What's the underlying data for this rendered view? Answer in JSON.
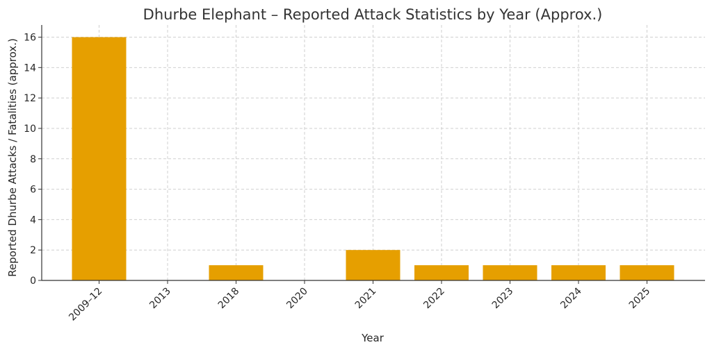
{
  "chart_data": {
    "type": "bar",
    "title": "Dhurbe Elephant – Reported Attack Statistics by Year (Approx.)",
    "xlabel": "Year",
    "ylabel": "Reported Dhurbe Attacks / Fatalities (approx.)",
    "categories": [
      "2009–12",
      "2013",
      "2018",
      "2020",
      "2021",
      "2022",
      "2023",
      "2024",
      "2025"
    ],
    "values": [
      16,
      0,
      1,
      0,
      2,
      1,
      1,
      1,
      1
    ],
    "ylim": [
      0,
      16.8
    ],
    "yticks": [
      0,
      2,
      4,
      6,
      8,
      10,
      12,
      14,
      16
    ],
    "xtick_rotation": "45deg",
    "grid": true,
    "bar_color": "#E69F00"
  }
}
